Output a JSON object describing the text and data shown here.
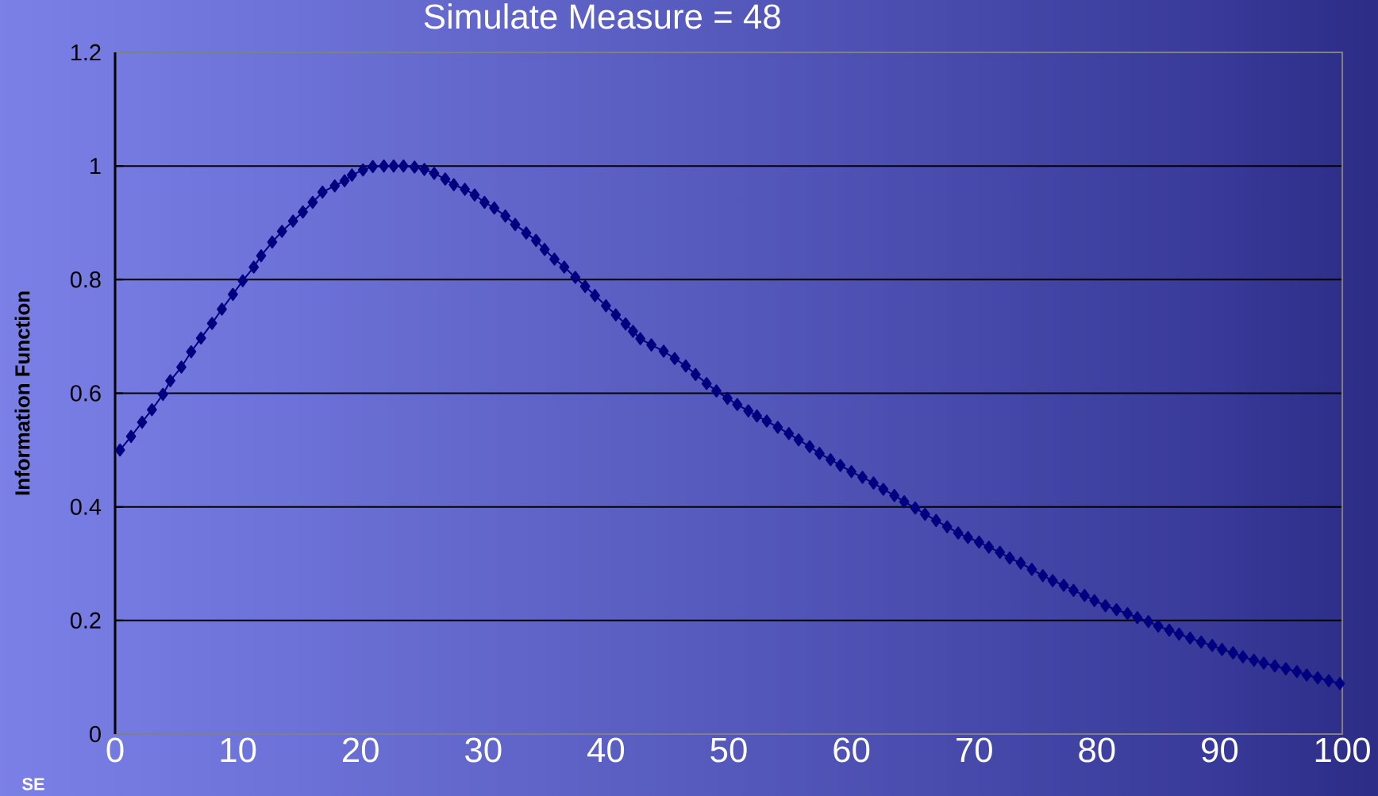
{
  "chart_data": {
    "type": "line",
    "title": "Simulate Measure = 48",
    "ylabel": "Information Function",
    "annotations": [
      "SE"
    ],
    "x": [
      0.4,
      1.3,
      2.2,
      3.0,
      3.9,
      4.5,
      5.4,
      6.2,
      7.0,
      7.9,
      8.7,
      9.6,
      10.4,
      11.3,
      11.9,
      12.8,
      13.6,
      14.5,
      15.3,
      16.1,
      16.9,
      17.9,
      18.7,
      19.3,
      20.2,
      21.0,
      21.9,
      22.7,
      23.5,
      24.4,
      25.2,
      26.0,
      26.9,
      27.6,
      28.5,
      29.3,
      30.1,
      30.9,
      31.8,
      32.6,
      33.5,
      34.3,
      35.0,
      35.8,
      36.6,
      37.5,
      38.3,
      39.1,
      40.0,
      40.8,
      41.6,
      42.2,
      42.8,
      43.7,
      44.7,
      45.6,
      46.5,
      47.3,
      48.2,
      49.0,
      49.9,
      50.7,
      51.6,
      52.3,
      53.1,
      54.0,
      54.9,
      55.7,
      56.6,
      57.4,
      58.3,
      59.1,
      60.0,
      60.9,
      61.8,
      62.6,
      63.5,
      64.3,
      65.2,
      66.0,
      66.9,
      67.8,
      68.7,
      69.5,
      70.4,
      71.2,
      72.1,
      72.9,
      73.8,
      74.7,
      75.6,
      76.4,
      77.3,
      78.1,
      79.0,
      79.8,
      80.7,
      81.6,
      82.5,
      83.3,
      84.2,
      85.0,
      85.9,
      86.7,
      87.6,
      88.5,
      89.4,
      90.2,
      91.1,
      91.9,
      92.8,
      93.6,
      94.5,
      95.4,
      96.3,
      97.1,
      98.0,
      98.9,
      99.8
    ],
    "values": [
      0.5,
      0.524,
      0.549,
      0.571,
      0.598,
      0.622,
      0.646,
      0.673,
      0.697,
      0.723,
      0.748,
      0.774,
      0.798,
      0.822,
      0.842,
      0.866,
      0.885,
      0.903,
      0.919,
      0.936,
      0.954,
      0.965,
      0.974,
      0.984,
      0.993,
      0.999,
      1.0,
      1.0,
      1.0,
      0.998,
      0.994,
      0.987,
      0.977,
      0.967,
      0.959,
      0.949,
      0.936,
      0.926,
      0.912,
      0.897,
      0.882,
      0.869,
      0.853,
      0.836,
      0.822,
      0.804,
      0.788,
      0.772,
      0.754,
      0.738,
      0.722,
      0.709,
      0.696,
      0.685,
      0.674,
      0.661,
      0.648,
      0.633,
      0.617,
      0.604,
      0.591,
      0.58,
      0.569,
      0.56,
      0.551,
      0.54,
      0.529,
      0.518,
      0.506,
      0.494,
      0.483,
      0.473,
      0.462,
      0.452,
      0.442,
      0.431,
      0.42,
      0.409,
      0.398,
      0.387,
      0.376,
      0.365,
      0.354,
      0.346,
      0.338,
      0.329,
      0.32,
      0.31,
      0.301,
      0.29,
      0.279,
      0.27,
      0.262,
      0.253,
      0.244,
      0.235,
      0.226,
      0.219,
      0.212,
      0.205,
      0.198,
      0.19,
      0.183,
      0.176,
      0.169,
      0.162,
      0.156,
      0.149,
      0.143,
      0.136,
      0.13,
      0.125,
      0.12,
      0.115,
      0.11,
      0.104,
      0.099,
      0.094,
      0.089
    ],
    "color": "#000080",
    "marker": "diamond",
    "line_style": "solid",
    "grid": "y",
    "xlim": [
      0,
      100
    ],
    "ylim": [
      0,
      1.2
    ],
    "xticks": [
      0,
      10,
      20,
      30,
      40,
      50,
      60,
      70,
      80,
      90,
      100
    ],
    "yticks": [
      0,
      0.2,
      0.4,
      0.6,
      0.8,
      1,
      1.2
    ]
  }
}
